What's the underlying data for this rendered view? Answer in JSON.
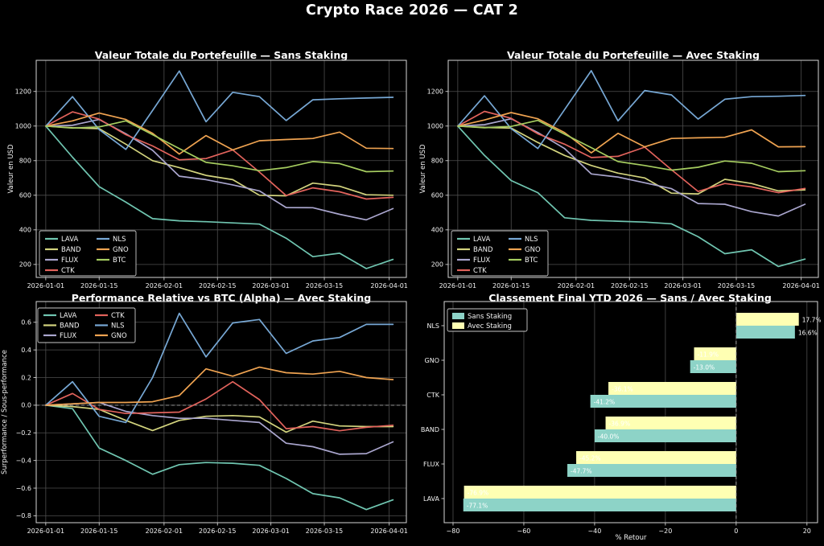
{
  "page_title": "Crypto Race 2026 — CAT 2",
  "colors": {
    "background": "#000000",
    "text": "#ffffff",
    "grid": "#4e4e4e",
    "sans_staking_bar": "#8dd3c7",
    "avec_staking_bar": "#feffb3"
  },
  "chart_data": [
    {
      "type": "line",
      "title": "Valeur Totale du Portefeuille — Sans Staking",
      "ylabel": "Valeur en USD",
      "x_days": [
        0,
        7,
        14,
        21,
        28,
        35,
        42,
        49,
        56,
        63,
        70,
        77,
        84,
        91
      ],
      "xlim": [
        -2.5,
        94.5
      ],
      "xticks": [
        {
          "pos": 0,
          "label": "2026-01-01"
        },
        {
          "pos": 14,
          "label": "2026-01-15"
        },
        {
          "pos": 31,
          "label": "2026-02-01"
        },
        {
          "pos": 45,
          "label": "2026-02-15"
        },
        {
          "pos": 59,
          "label": "2026-03-01"
        },
        {
          "pos": 73,
          "label": "2026-03-15"
        },
        {
          "pos": 90,
          "label": "2026-04-01"
        }
      ],
      "ylim": [
        125,
        1380
      ],
      "yticks": [
        {
          "pos": 200,
          "label": "200"
        },
        {
          "pos": 400,
          "label": "400"
        },
        {
          "pos": 600,
          "label": "600"
        },
        {
          "pos": 800,
          "label": "800"
        },
        {
          "pos": 1000,
          "label": "1000"
        },
        {
          "pos": 1200,
          "label": "1200"
        }
      ],
      "legend": {
        "position": "lower-left",
        "columns": [
          [
            "LAVA",
            "BAND",
            "FLUX",
            "CTK"
          ],
          [
            "NLS",
            "GNO",
            "BTC"
          ]
        ]
      },
      "series": [
        {
          "name": "LAVA",
          "color": "#70c6b1",
          "values": [
            1000,
            820,
            650,
            560,
            465,
            452,
            447,
            440,
            433,
            352,
            245,
            265,
            176,
            229
          ]
        },
        {
          "name": "BAND",
          "color": "#d3d47e",
          "values": [
            1000,
            990,
            985,
            895,
            800,
            760,
            715,
            690,
            600,
            597,
            670,
            652,
            603,
            600
          ]
        },
        {
          "name": "FLUX",
          "color": "#aaa6ce",
          "values": [
            1000,
            1005,
            1038,
            955,
            860,
            710,
            690,
            660,
            625,
            529,
            528,
            490,
            458,
            523
          ]
        },
        {
          "name": "CTK",
          "color": "#e2635c",
          "values": [
            1000,
            1082,
            1040,
            950,
            885,
            805,
            812,
            862,
            734,
            598,
            643,
            620,
            578,
            588
          ]
        },
        {
          "name": "NLS",
          "color": "#77a8d5",
          "values": [
            1000,
            1170,
            980,
            865,
            1090,
            1318,
            1025,
            1195,
            1170,
            1032,
            1152,
            1158,
            1162,
            1166
          ]
        },
        {
          "name": "GNO",
          "color": "#efa351",
          "values": [
            1000,
            1030,
            1075,
            1038,
            958,
            838,
            945,
            862,
            915,
            922,
            928,
            965,
            872,
            870
          ]
        },
        {
          "name": "BTC",
          "color": "#a6cd60",
          "values": [
            1000,
            988,
            995,
            1030,
            950,
            870,
            790,
            770,
            742,
            760,
            795,
            783,
            736,
            740
          ]
        }
      ]
    },
    {
      "type": "line",
      "title": "Valeur Totale du Portefeuille — Avec Staking",
      "ylabel": "Valeur en USD",
      "x_days": [
        0,
        7,
        14,
        21,
        28,
        35,
        42,
        49,
        56,
        63,
        70,
        77,
        84,
        91
      ],
      "xlim": [
        -2.5,
        94.5
      ],
      "xticks": [
        {
          "pos": 0,
          "label": "2026-01-01"
        },
        {
          "pos": 14,
          "label": "2026-01-15"
        },
        {
          "pos": 31,
          "label": "2026-02-01"
        },
        {
          "pos": 45,
          "label": "2026-02-15"
        },
        {
          "pos": 59,
          "label": "2026-03-01"
        },
        {
          "pos": 73,
          "label": "2026-03-15"
        },
        {
          "pos": 90,
          "label": "2026-04-01"
        }
      ],
      "ylim": [
        125,
        1380
      ],
      "yticks": [
        {
          "pos": 200,
          "label": "200"
        },
        {
          "pos": 400,
          "label": "400"
        },
        {
          "pos": 600,
          "label": "600"
        },
        {
          "pos": 800,
          "label": "800"
        },
        {
          "pos": 1000,
          "label": "1000"
        },
        {
          "pos": 1200,
          "label": "1200"
        }
      ],
      "legend": {
        "position": "lower-left",
        "columns": [
          [
            "LAVA",
            "BAND",
            "FLUX",
            "CTK"
          ],
          [
            "NLS",
            "GNO",
            "BTC"
          ]
        ]
      },
      "series": [
        {
          "name": "LAVA",
          "color": "#70c6b1",
          "values": [
            1000,
            830,
            685,
            615,
            470,
            455,
            450,
            445,
            435,
            360,
            262,
            285,
            188,
            231
          ]
        },
        {
          "name": "BAND",
          "color": "#d3d47e",
          "values": [
            1000,
            992,
            988,
            905,
            830,
            772,
            728,
            700,
            612,
            608,
            692,
            668,
            625,
            631
          ]
        },
        {
          "name": "FLUX",
          "color": "#aaa6ce",
          "values": [
            1000,
            1008,
            1042,
            962,
            870,
            723,
            705,
            672,
            638,
            552,
            548,
            505,
            480,
            548
          ]
        },
        {
          "name": "CTK",
          "color": "#e2635c",
          "values": [
            1000,
            1085,
            1045,
            955,
            895,
            818,
            825,
            878,
            748,
            622,
            668,
            648,
            615,
            639
          ]
        },
        {
          "name": "NLS",
          "color": "#77a8d5",
          "values": [
            1000,
            1175,
            985,
            870,
            1095,
            1320,
            1030,
            1205,
            1180,
            1040,
            1155,
            1170,
            1172,
            1177
          ]
        },
        {
          "name": "GNO",
          "color": "#efa351",
          "values": [
            1000,
            1035,
            1078,
            1042,
            962,
            845,
            958,
            880,
            928,
            932,
            935,
            978,
            880,
            881
          ]
        },
        {
          "name": "BTC",
          "color": "#a6cd60",
          "values": [
            1000,
            990,
            998,
            1033,
            953,
            875,
            795,
            772,
            745,
            762,
            798,
            785,
            736,
            742
          ]
        }
      ]
    },
    {
      "type": "line",
      "title": "Performance Relative vs BTC (Alpha) — Avec Staking",
      "ylabel": "Surperformance / Sous-performance",
      "zero_line": true,
      "x_days": [
        0,
        7,
        14,
        21,
        28,
        35,
        42,
        49,
        56,
        63,
        70,
        77,
        84,
        91
      ],
      "xlim": [
        -2.5,
        94.5
      ],
      "xticks": [
        {
          "pos": 0,
          "label": "2026-01-01"
        },
        {
          "pos": 14,
          "label": "2026-01-15"
        },
        {
          "pos": 31,
          "label": "2026-02-01"
        },
        {
          "pos": 45,
          "label": "2026-02-15"
        },
        {
          "pos": 59,
          "label": "2026-03-01"
        },
        {
          "pos": 73,
          "label": "2026-03-15"
        },
        {
          "pos": 90,
          "label": "2026-04-01"
        }
      ],
      "ylim": [
        -0.85,
        0.75
      ],
      "yticks": [
        {
          "pos": -0.8,
          "label": "−0.8"
        },
        {
          "pos": -0.6,
          "label": "−0.6"
        },
        {
          "pos": -0.4,
          "label": "−0.4"
        },
        {
          "pos": -0.2,
          "label": "−0.2"
        },
        {
          "pos": 0.0,
          "label": "0.0"
        },
        {
          "pos": 0.2,
          "label": "0.2"
        },
        {
          "pos": 0.4,
          "label": "0.4"
        },
        {
          "pos": 0.6,
          "label": "0.6"
        }
      ],
      "legend": {
        "position": "upper-left",
        "columns": [
          [
            "LAVA",
            "BAND",
            "FLUX"
          ],
          [
            "CTK",
            "NLS",
            "GNO"
          ]
        ]
      },
      "series": [
        {
          "name": "LAVA",
          "color": "#70c6b1",
          "values": [
            0,
            -0.025,
            -0.31,
            -0.4,
            -0.5,
            -0.43,
            -0.415,
            -0.42,
            -0.435,
            -0.53,
            -0.64,
            -0.67,
            -0.755,
            -0.685
          ]
        },
        {
          "name": "BAND",
          "color": "#d3d47e",
          "values": [
            0,
            -0.01,
            -0.03,
            -0.11,
            -0.183,
            -0.11,
            -0.08,
            -0.075,
            -0.085,
            -0.195,
            -0.115,
            -0.15,
            -0.155,
            -0.155
          ]
        },
        {
          "name": "FLUX",
          "color": "#aaa6ce",
          "values": [
            0,
            0.01,
            0.02,
            -0.045,
            -0.075,
            -0.095,
            -0.095,
            -0.11,
            -0.125,
            -0.275,
            -0.3,
            -0.355,
            -0.35,
            -0.265
          ]
        },
        {
          "name": "CTK",
          "color": "#e2635c",
          "values": [
            0,
            0.085,
            -0.03,
            -0.06,
            -0.055,
            -0.05,
            0.045,
            0.17,
            0.04,
            -0.17,
            -0.155,
            -0.185,
            -0.16,
            -0.145
          ]
        },
        {
          "name": "NLS",
          "color": "#77a8d5",
          "values": [
            0,
            0.17,
            -0.08,
            -0.125,
            0.2,
            0.665,
            0.35,
            0.595,
            0.62,
            0.375,
            0.465,
            0.49,
            0.585,
            0.585
          ]
        },
        {
          "name": "GNO",
          "color": "#efa351",
          "values": [
            0,
            0.01,
            0.02,
            0.02,
            0.025,
            0.07,
            0.263,
            0.21,
            0.275,
            0.235,
            0.225,
            0.245,
            0.2,
            0.185
          ]
        }
      ]
    },
    {
      "type": "bar",
      "title": "Classement Final YTD 2026 — Sans / Avec Staking",
      "xlabel": "% Retour",
      "categories": [
        "NLS",
        "GNO",
        "CTK",
        "BAND",
        "FLUX",
        "LAVA"
      ],
      "xlim": [
        -82.5,
        23
      ],
      "xticks": [
        {
          "pos": -80,
          "label": "−80"
        },
        {
          "pos": -60,
          "label": "−60"
        },
        {
          "pos": -40,
          "label": "−40"
        },
        {
          "pos": -20,
          "label": "−20"
        },
        {
          "pos": 0,
          "label": "0"
        },
        {
          "pos": 20,
          "label": "20"
        }
      ],
      "zero_line": true,
      "legend": [
        "Sans Staking",
        "Avec Staking"
      ],
      "series": [
        {
          "name": "Sans Staking",
          "color": "#8dd3c7",
          "values": [
            16.6,
            -13.0,
            -41.2,
            -40.0,
            -47.7,
            -77.1
          ],
          "labels": [
            "16.6%",
            "-13.0%",
            "-41.2%",
            "-40.0%",
            "-47.7%",
            "-77.1%"
          ]
        },
        {
          "name": "Avec Staking",
          "color": "#feffb3",
          "values": [
            17.7,
            -11.9,
            -36.1,
            -36.9,
            -45.2,
            -76.9
          ],
          "labels": [
            "17.7%",
            "-11.9%",
            "-36.1%",
            "-36.9%",
            "-45.2%",
            "-76.9%"
          ]
        }
      ]
    }
  ]
}
